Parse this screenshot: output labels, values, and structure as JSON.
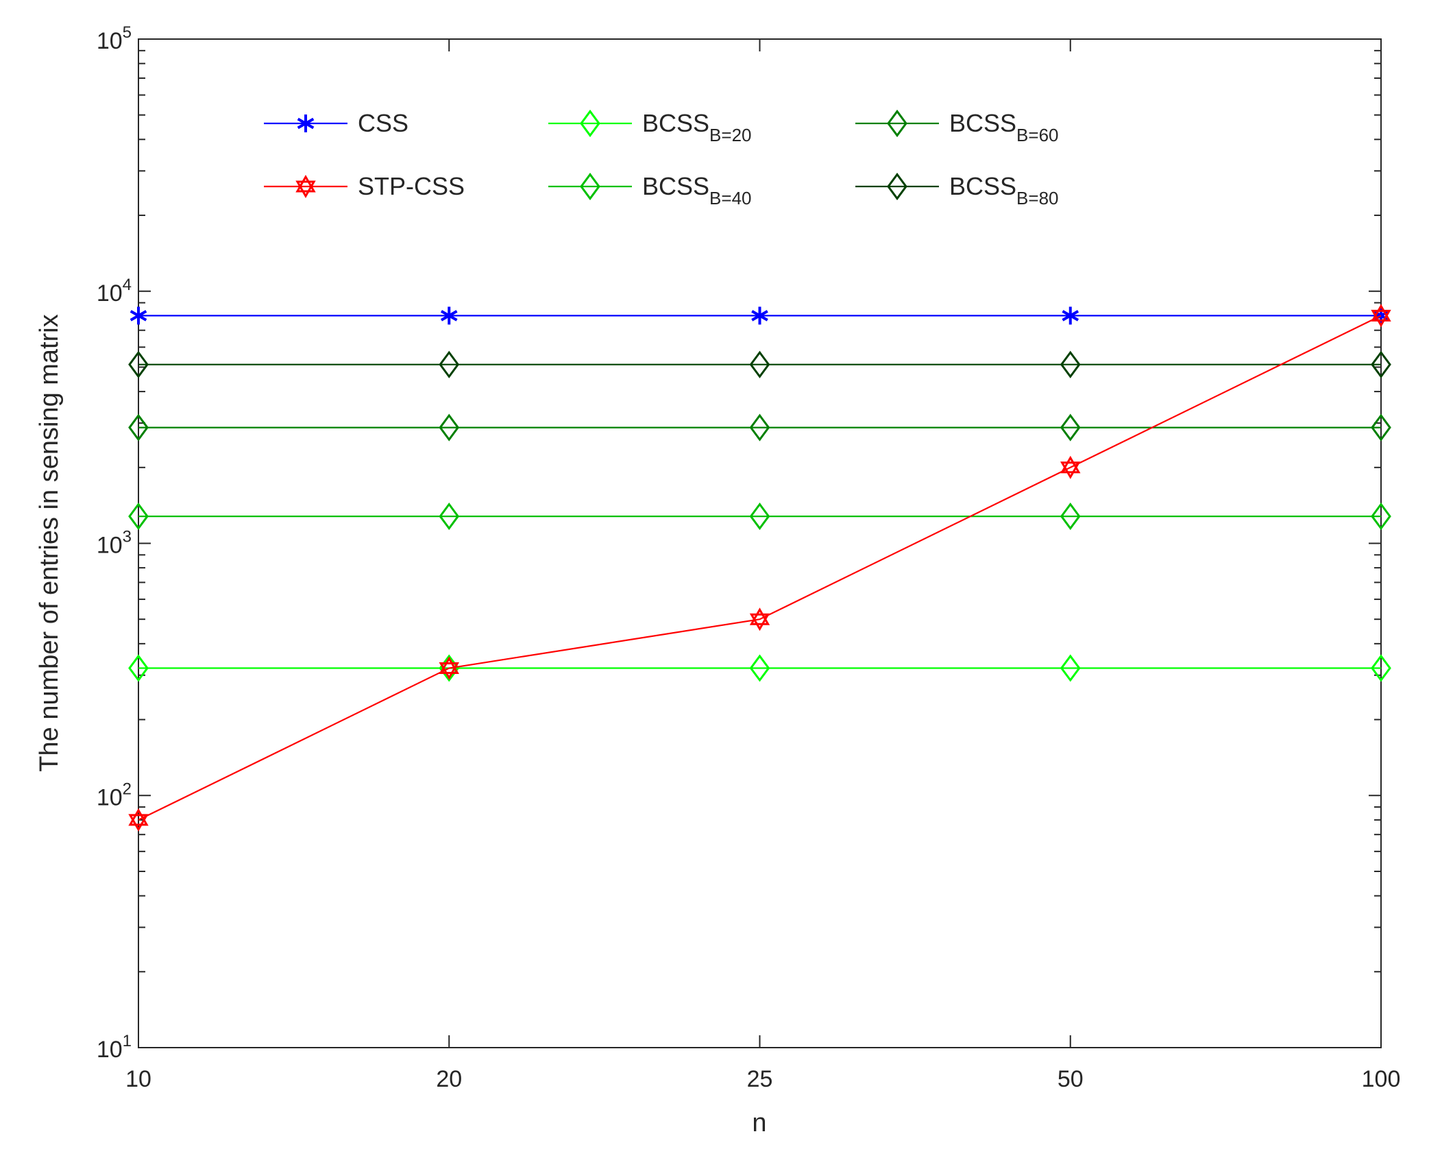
{
  "chart_data": {
    "type": "line",
    "title": "",
    "xlabel": "n",
    "ylabel": "The number of entries in sensing matrix",
    "x_scale": "categorical",
    "y_scale": "log",
    "categories": [
      "10",
      "20",
      "25",
      "50",
      "100"
    ],
    "ylim": [
      10,
      100000
    ],
    "y_ticks": [
      {
        "base": "10",
        "exp": "1"
      },
      {
        "base": "10",
        "exp": "2"
      },
      {
        "base": "10",
        "exp": "3"
      },
      {
        "base": "10",
        "exp": "4"
      },
      {
        "base": "10",
        "exp": "5"
      }
    ],
    "grid": false,
    "legend": "top, three columns",
    "series": [
      {
        "key": "css",
        "name": "CSS",
        "sub": "",
        "color": "#0000ff",
        "marker": "asterisk",
        "values": [
          8000,
          8000,
          8000,
          8000,
          8000
        ]
      },
      {
        "key": "stp",
        "name": "STP-CSS",
        "sub": "",
        "color": "#ff0000",
        "marker": "hexagram",
        "values": [
          80,
          320,
          500,
          2000,
          8000
        ]
      },
      {
        "key": "b20",
        "name": "BCSS",
        "sub": "B=20",
        "color": "#00ff00",
        "marker": "diamond",
        "values": [
          320,
          320,
          320,
          320,
          320
        ]
      },
      {
        "key": "b40",
        "name": "BCSS",
        "sub": "B=40",
        "color": "#00c000",
        "marker": "diamond",
        "values": [
          1280,
          1280,
          1280,
          1280,
          1280
        ]
      },
      {
        "key": "b60",
        "name": "BCSS",
        "sub": "B=60",
        "color": "#008000",
        "marker": "diamond",
        "values": [
          2880,
          2880,
          2880,
          2880,
          2880
        ]
      },
      {
        "key": "b80",
        "name": "BCSS",
        "sub": "B=80",
        "color": "#004000",
        "marker": "diamond",
        "values": [
          5120,
          5120,
          5120,
          5120,
          5120
        ]
      }
    ]
  }
}
